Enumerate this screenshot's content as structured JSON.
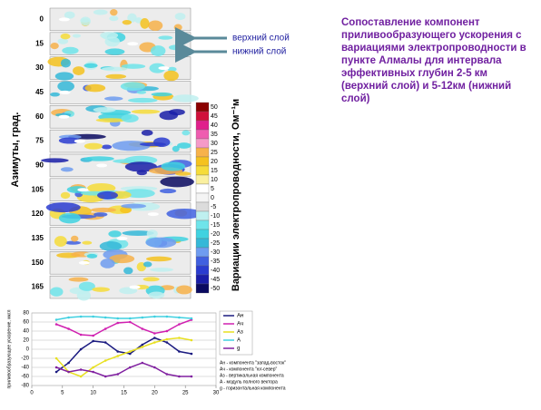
{
  "slide_title": "Сопоставление компонент приливообразующего ускорения с вариациями электропроводности в пункте Алмалы для интервала эффективных глубин 2-5 км (верхний слой) и 5-12км (нижний слой)",
  "layer_labels": [
    "верхний слой",
    "нижний слой"
  ],
  "contour_panel": {
    "y_label": "Азимуты, град.",
    "azimuths": [
      "0",
      "15",
      "30",
      "45",
      "60",
      "75",
      "90",
      "105",
      "120",
      "135",
      "150",
      "165"
    ]
  },
  "colorbar": {
    "label": "Вариации электропроводности, Ом⁻¹м",
    "ticks": [
      50,
      45,
      40,
      35,
      30,
      25,
      20,
      15,
      10,
      5,
      0,
      -5,
      -10,
      -15,
      -20,
      -25,
      -30,
      -35,
      -40,
      -45,
      -50
    ],
    "colors": [
      "#8b0000",
      "#d0103a",
      "#e0208c",
      "#ef5cb0",
      "#f59ac8",
      "#f7b24a",
      "#f5c21e",
      "#f6dc3a",
      "#faf0a0",
      "#ffffff",
      "#f4f4f4",
      "#dcdcdc",
      "#bff0f0",
      "#6fe4ea",
      "#3fd2e0",
      "#35b8d8",
      "#6f9cf0",
      "#4060e0",
      "#2a3cd0",
      "#1a1ea8",
      "#0a0a60"
    ]
  },
  "chart_data": {
    "type": "line",
    "y_label": "приливообразующее ускорение, мкгл",
    "x": [
      4,
      6,
      8,
      10,
      12,
      14,
      16,
      18,
      20,
      22,
      24,
      26
    ],
    "series": [
      {
        "name": "Aн",
        "color": "#1a1a80",
        "values": [
          -50,
          -30,
          0,
          18,
          15,
          -5,
          -10,
          10,
          25,
          15,
          -5,
          -10
        ]
      },
      {
        "name": "Aч",
        "color": "#d020b0",
        "values": [
          55,
          45,
          32,
          30,
          45,
          58,
          60,
          45,
          35,
          40,
          55,
          65
        ]
      },
      {
        "name": "Aз",
        "color": "#e8e020",
        "values": [
          -20,
          -50,
          -60,
          -40,
          -25,
          -15,
          -5,
          5,
          15,
          22,
          25,
          20
        ]
      },
      {
        "name": "A",
        "color": "#40d0e0",
        "values": [
          65,
          70,
          72,
          72,
          70,
          68,
          68,
          70,
          72,
          72,
          70,
          68
        ]
      },
      {
        "name": "g",
        "color": "#8020a0",
        "values": [
          -40,
          -50,
          -45,
          -50,
          -60,
          -55,
          -40,
          -30,
          -40,
          -55,
          -60,
          -60
        ]
      }
    ],
    "legend_notes": [
      "Aн - компонента \"запад-восток\"",
      "Aч - компонента \"юг-север\"",
      "Aз - вертикальная компонента",
      "A - модуль полного вектора",
      "g - горизонтальная компонента"
    ],
    "xlim": [
      0,
      30
    ],
    "ylim": [
      -80,
      80
    ],
    "xticks": [
      0,
      5,
      10,
      15,
      20,
      25,
      30
    ],
    "yticks": [
      80,
      60,
      40,
      20,
      0,
      -20,
      -40,
      -60,
      -80
    ]
  }
}
